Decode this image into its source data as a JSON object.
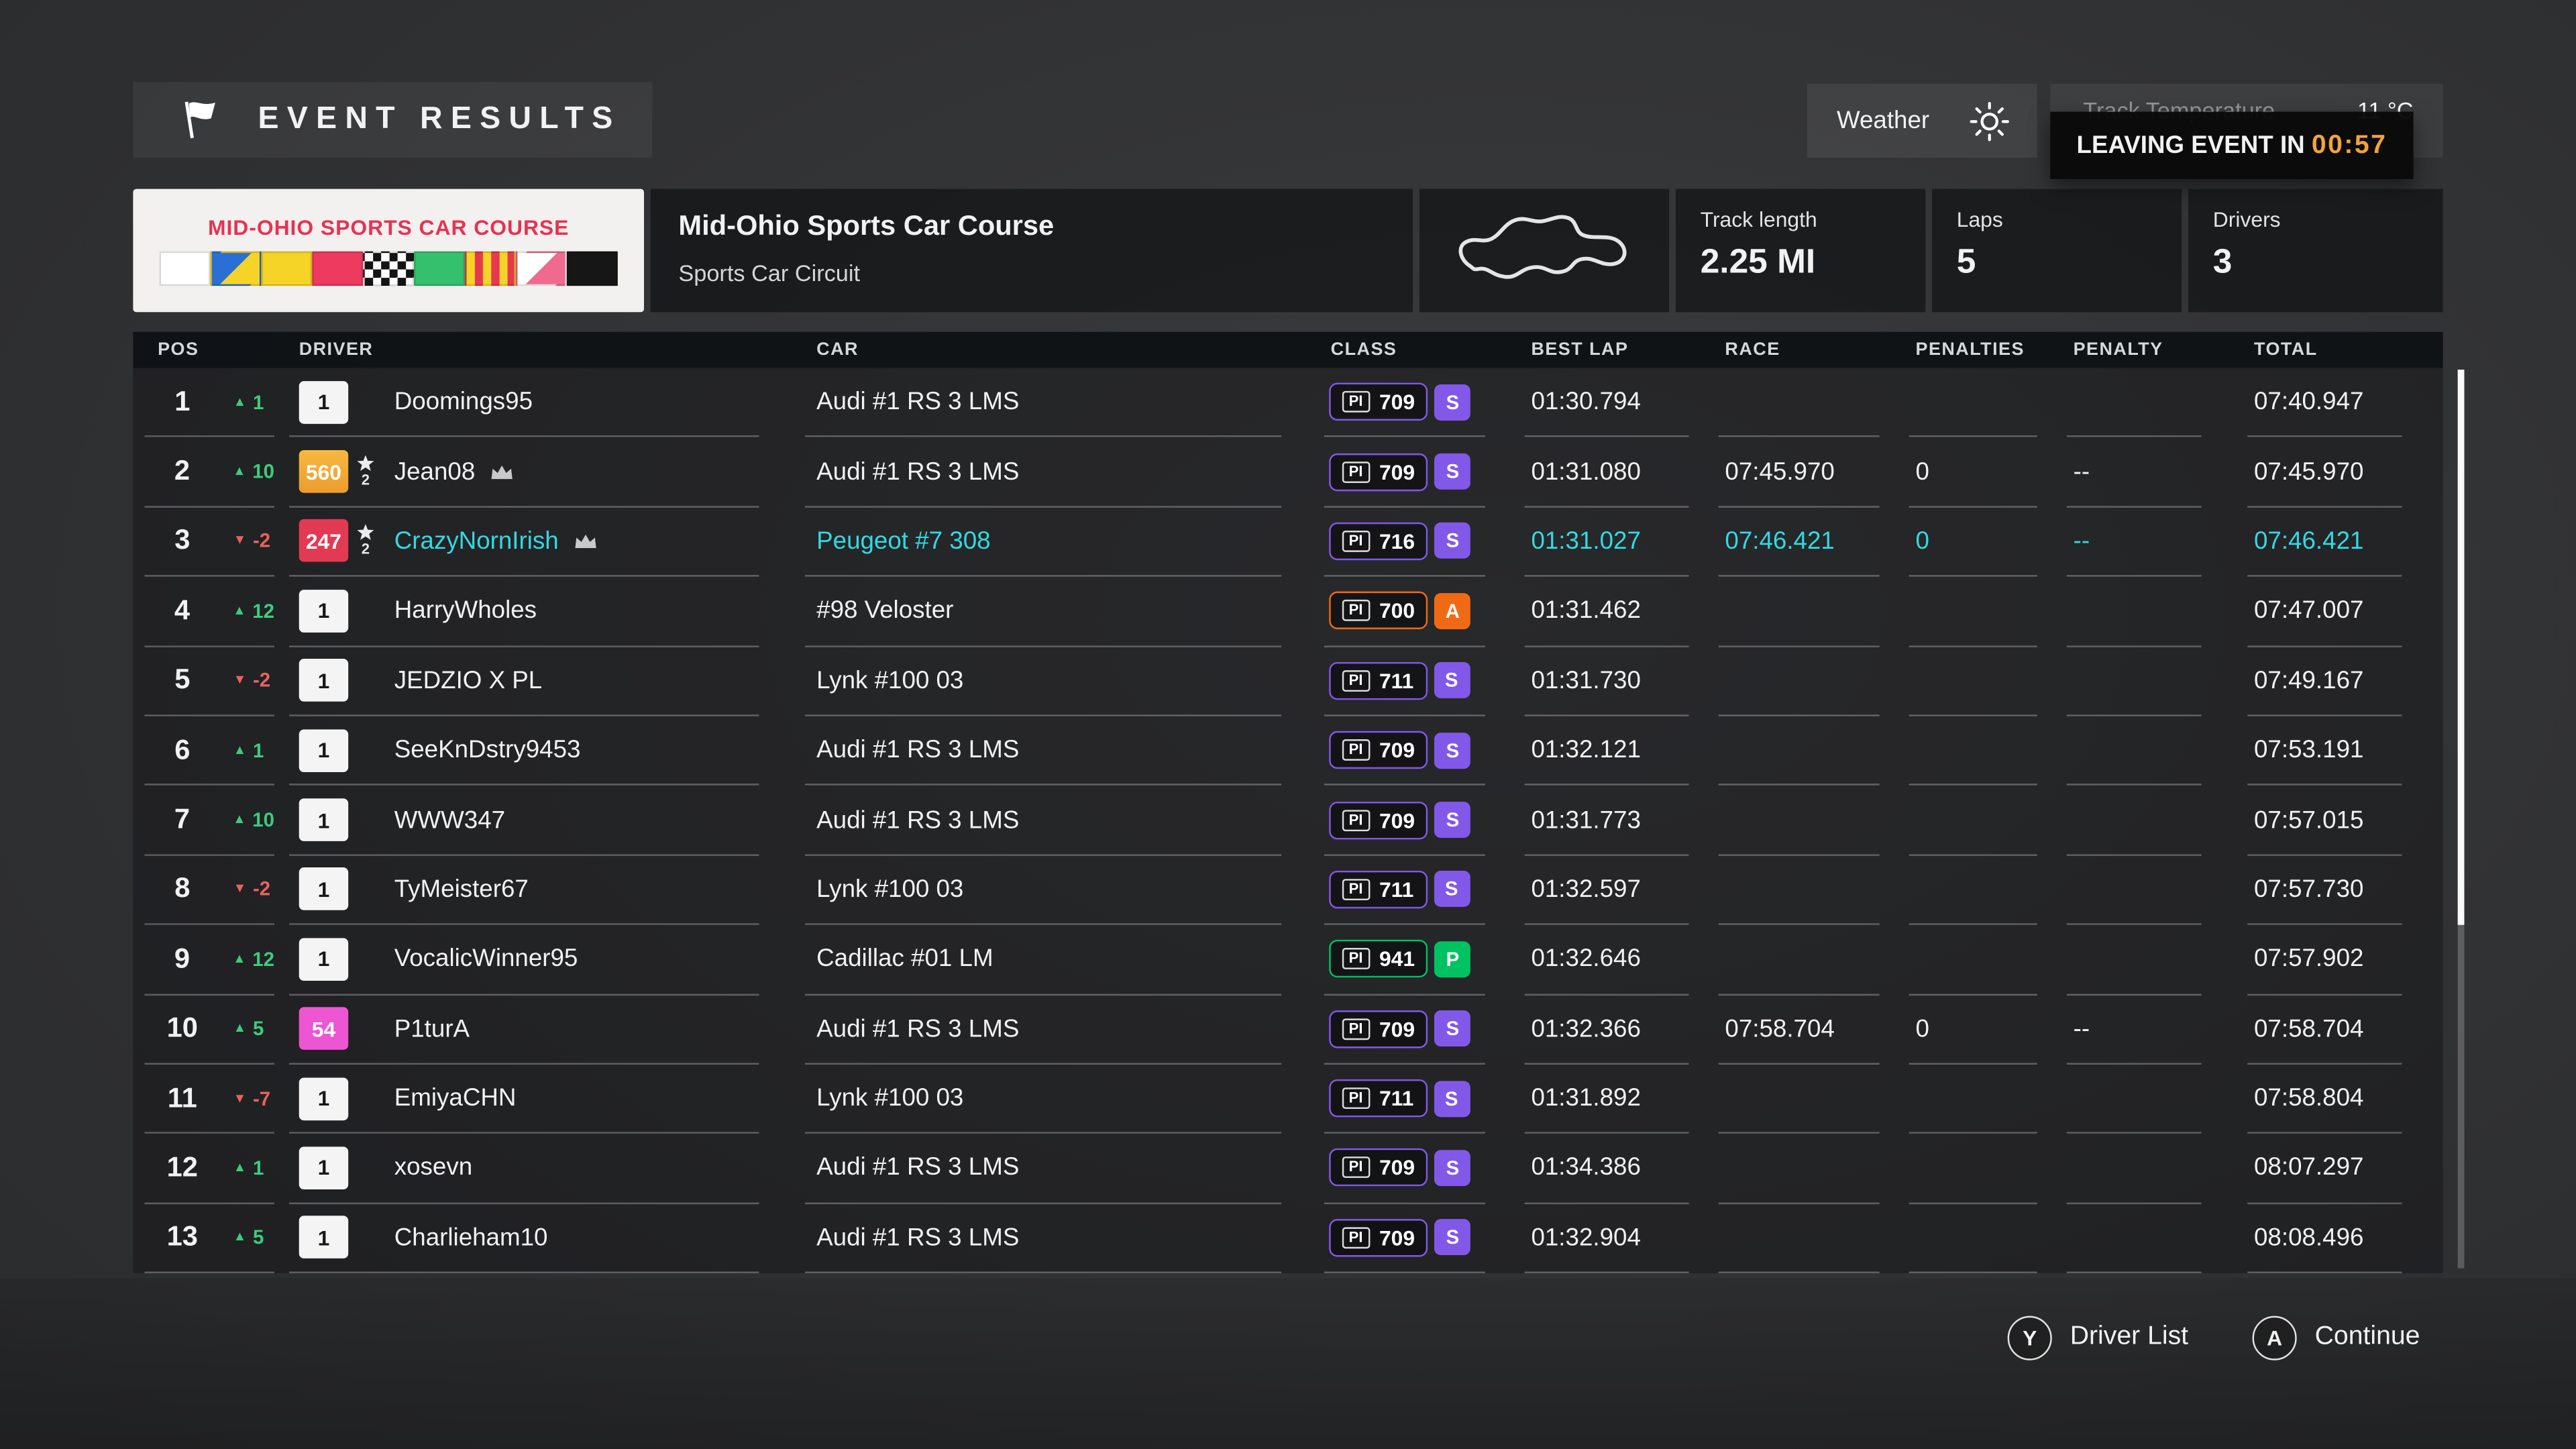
{
  "header": {
    "title": "EVENT RESULTS",
    "weather": {
      "label": "Weather"
    },
    "track_temperature": {
      "label": "Track Temperature",
      "value": "11 °C"
    },
    "leaving_event": {
      "label": "LEAVING EVENT IN",
      "time": "00:57"
    }
  },
  "event_info": {
    "logo_text": "MID-OHIO SPORTS CAR COURSE",
    "logo_flags": [
      "white",
      "blue-yellow",
      "yellow",
      "red",
      "checkered",
      "green",
      "yellow-red-stripes",
      "pink-diagonal",
      "black"
    ],
    "track_name": "Mid-Ohio Sports Car Course",
    "circuit_type": "Sports Car Circuit",
    "stats": [
      {
        "label": "Track length",
        "value": "2.25 MI"
      },
      {
        "label": "Laps",
        "value": "5"
      },
      {
        "label": "Drivers",
        "value": "3"
      }
    ]
  },
  "icons": {
    "up_arrow": "▲",
    "down_arrow": "▼"
  },
  "colors": {
    "up": "#3ecb7e",
    "down": "#e8635c",
    "highlight": "#33d9e2",
    "class_s": "#8258e8",
    "class_a": "#f06a15",
    "class_p": "#00c262",
    "timer": "#f2a33c"
  },
  "table": {
    "pi_label": "PI",
    "columns": [
      "POS",
      "DRIVER",
      "CAR",
      "CLASS",
      "BEST LAP",
      "RACE",
      "PENALTIES",
      "PENALTY",
      "TOTAL"
    ],
    "rows": [
      {
        "pos": "1",
        "dir": "up",
        "change": "1",
        "badge": "1",
        "badge_bg": "#f4f4f4",
        "badge_fg": "#17181a",
        "star": "",
        "crown": false,
        "driver": "Doomings95",
        "car": "Audi #1 RS 3 LMS",
        "pi": "709",
        "class_letter": "S",
        "class_color": "#8258e8",
        "best_lap": "01:30.794",
        "race": "",
        "penalties": "",
        "penalty": "",
        "total": "07:40.947",
        "highlight": false
      },
      {
        "pos": "2",
        "dir": "up",
        "change": "10",
        "badge": "560",
        "badge_bg": "linear-gradient(#f8b840,#ec9d2b)",
        "badge_fg": "#ffffff",
        "star": "2",
        "crown": true,
        "driver": "Jean08",
        "car": "Audi #1 RS 3 LMS",
        "pi": "709",
        "class_letter": "S",
        "class_color": "#8258e8",
        "best_lap": "01:31.080",
        "race": "07:45.970",
        "penalties": "0",
        "penalty": "--",
        "total": "07:45.970",
        "highlight": false
      },
      {
        "pos": "3",
        "dir": "down",
        "change": "-2",
        "badge": "247",
        "badge_bg": "#e23a52",
        "badge_fg": "#ffffff",
        "star": "2",
        "crown": true,
        "driver": "CrazyNornIrish",
        "car": "Peugeot #7 308",
        "pi": "716",
        "class_letter": "S",
        "class_color": "#8258e8",
        "best_lap": "01:31.027",
        "race": "07:46.421",
        "penalties": "0",
        "penalty": "--",
        "total": "07:46.421",
        "highlight": true
      },
      {
        "pos": "4",
        "dir": "up",
        "change": "12",
        "badge": "1",
        "badge_bg": "#f4f4f4",
        "badge_fg": "#17181a",
        "star": "",
        "crown": false,
        "driver": "HarryWholes",
        "car": "#98 Veloster",
        "pi": "700",
        "class_letter": "A",
        "class_color": "#f06a15",
        "best_lap": "01:31.462",
        "race": "",
        "penalties": "",
        "penalty": "",
        "total": "07:47.007",
        "highlight": false
      },
      {
        "pos": "5",
        "dir": "down",
        "change": "-2",
        "badge": "1",
        "badge_bg": "#f4f4f4",
        "badge_fg": "#17181a",
        "star": "",
        "crown": false,
        "driver": "JEDZIO X PL",
        "car": "Lynk #100 03",
        "pi": "711",
        "class_letter": "S",
        "class_color": "#8258e8",
        "best_lap": "01:31.730",
        "race": "",
        "penalties": "",
        "penalty": "",
        "total": "07:49.167",
        "highlight": false
      },
      {
        "pos": "6",
        "dir": "up",
        "change": "1",
        "badge": "1",
        "badge_bg": "#f4f4f4",
        "badge_fg": "#17181a",
        "star": "",
        "crown": false,
        "driver": "SeeKnDstry9453",
        "car": "Audi #1 RS 3 LMS",
        "pi": "709",
        "class_letter": "S",
        "class_color": "#8258e8",
        "best_lap": "01:32.121",
        "race": "",
        "penalties": "",
        "penalty": "",
        "total": "07:53.191",
        "highlight": false
      },
      {
        "pos": "7",
        "dir": "up",
        "change": "10",
        "badge": "1",
        "badge_bg": "#f4f4f4",
        "badge_fg": "#17181a",
        "star": "",
        "crown": false,
        "driver": "WWW347",
        "car": "Audi #1 RS 3 LMS",
        "pi": "709",
        "class_letter": "S",
        "class_color": "#8258e8",
        "best_lap": "01:31.773",
        "race": "",
        "penalties": "",
        "penalty": "",
        "total": "07:57.015",
        "highlight": false
      },
      {
        "pos": "8",
        "dir": "down",
        "change": "-2",
        "badge": "1",
        "badge_bg": "#f4f4f4",
        "badge_fg": "#17181a",
        "star": "",
        "crown": false,
        "driver": "TyMeister67",
        "car": "Lynk #100 03",
        "pi": "711",
        "class_letter": "S",
        "class_color": "#8258e8",
        "best_lap": "01:32.597",
        "race": "",
        "penalties": "",
        "penalty": "",
        "total": "07:57.730",
        "highlight": false
      },
      {
        "pos": "9",
        "dir": "up",
        "change": "12",
        "badge": "1",
        "badge_bg": "#f4f4f4",
        "badge_fg": "#17181a",
        "star": "",
        "crown": false,
        "driver": "VocalicWinner95",
        "car": "Cadillac #01 LM",
        "pi": "941",
        "class_letter": "P",
        "class_color": "#00c262",
        "best_lap": "01:32.646",
        "race": "",
        "penalties": "",
        "penalty": "",
        "total": "07:57.902",
        "highlight": false
      },
      {
        "pos": "10",
        "dir": "up",
        "change": "5",
        "badge": "54",
        "badge_bg": "#ee55d2",
        "badge_fg": "#ffffff",
        "star": "",
        "crown": false,
        "driver": "P1turA",
        "car": "Audi #1 RS 3 LMS",
        "pi": "709",
        "class_letter": "S",
        "class_color": "#8258e8",
        "best_lap": "01:32.366",
        "race": "07:58.704",
        "penalties": "0",
        "penalty": "--",
        "total": "07:58.704",
        "highlight": false
      },
      {
        "pos": "11",
        "dir": "down",
        "change": "-7",
        "badge": "1",
        "badge_bg": "#f4f4f4",
        "badge_fg": "#17181a",
        "star": "",
        "crown": false,
        "driver": "EmiyaCHN",
        "car": "Lynk #100 03",
        "pi": "711",
        "class_letter": "S",
        "class_color": "#8258e8",
        "best_lap": "01:31.892",
        "race": "",
        "penalties": "",
        "penalty": "",
        "total": "07:58.804",
        "highlight": false
      },
      {
        "pos": "12",
        "dir": "up",
        "change": "1",
        "badge": "1",
        "badge_bg": "#f4f4f4",
        "badge_fg": "#17181a",
        "star": "",
        "crown": false,
        "driver": "xosevn",
        "car": "Audi #1 RS 3 LMS",
        "pi": "709",
        "class_letter": "S",
        "class_color": "#8258e8",
        "best_lap": "01:34.386",
        "race": "",
        "penalties": "",
        "penalty": "",
        "total": "08:07.297",
        "highlight": false
      },
      {
        "pos": "13",
        "dir": "up",
        "change": "5",
        "badge": "1",
        "badge_bg": "#f4f4f4",
        "badge_fg": "#17181a",
        "star": "",
        "crown": false,
        "driver": "Charlieham10",
        "car": "Audi #1 RS 3 LMS",
        "pi": "709",
        "class_letter": "S",
        "class_color": "#8258e8",
        "best_lap": "01:32.904",
        "race": "",
        "penalties": "",
        "penalty": "",
        "total": "08:08.496",
        "highlight": false
      }
    ]
  },
  "footer": {
    "buttons": [
      {
        "key": "Y",
        "label": "Driver List"
      },
      {
        "key": "A",
        "label": "Continue"
      }
    ]
  }
}
